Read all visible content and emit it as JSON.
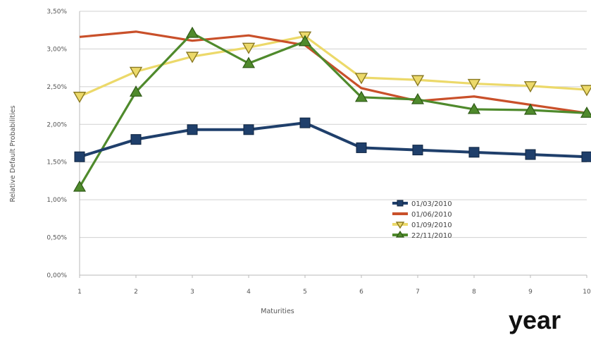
{
  "corner_label": "year",
  "chart_data": {
    "type": "line",
    "xlabel": "Maturities",
    "ylabel": "Relative Default Probabilities",
    "x": [
      1,
      2,
      3,
      4,
      5,
      6,
      7,
      8,
      9,
      10
    ],
    "xlim": [
      1,
      10
    ],
    "ylim": [
      0,
      3.5
    ],
    "y_ticks": [
      0,
      0.5,
      1.0,
      1.5,
      2.0,
      2.5,
      3.0,
      3.5
    ],
    "y_tick_labels": [
      "0,00%",
      "0,50%",
      "1,00%",
      "1,50%",
      "2,00%",
      "2,50%",
      "3,00%",
      "3,50%"
    ],
    "x_tick_labels": [
      "1",
      "2",
      "3",
      "4",
      "5",
      "6",
      "7",
      "8",
      "9",
      "10"
    ],
    "grid": true,
    "legend_position": "bottom-center",
    "series": [
      {
        "name": "01/03/2010",
        "color": "#1f3f6b",
        "marker": "square",
        "values": [
          1.57,
          1.8,
          1.93,
          1.93,
          2.02,
          1.69,
          1.66,
          1.63,
          1.6,
          1.57
        ]
      },
      {
        "name": "01/06/2010",
        "color": "#c9502a",
        "marker": "none",
        "values": [
          3.16,
          3.23,
          3.11,
          3.18,
          3.05,
          2.48,
          2.31,
          2.37,
          2.26,
          2.15
        ]
      },
      {
        "name": "01/09/2010",
        "color": "#ecd96a",
        "marker": "triangle-down",
        "values": [
          2.37,
          2.7,
          2.9,
          3.02,
          3.17,
          2.62,
          2.59,
          2.54,
          2.51,
          2.46
        ]
      },
      {
        "name": "22/11/2010",
        "color": "#4f8a2c",
        "marker": "triangle-up",
        "values": [
          1.17,
          2.43,
          3.21,
          2.81,
          3.1,
          2.36,
          2.33,
          2.2,
          2.19,
          2.15
        ]
      }
    ]
  }
}
